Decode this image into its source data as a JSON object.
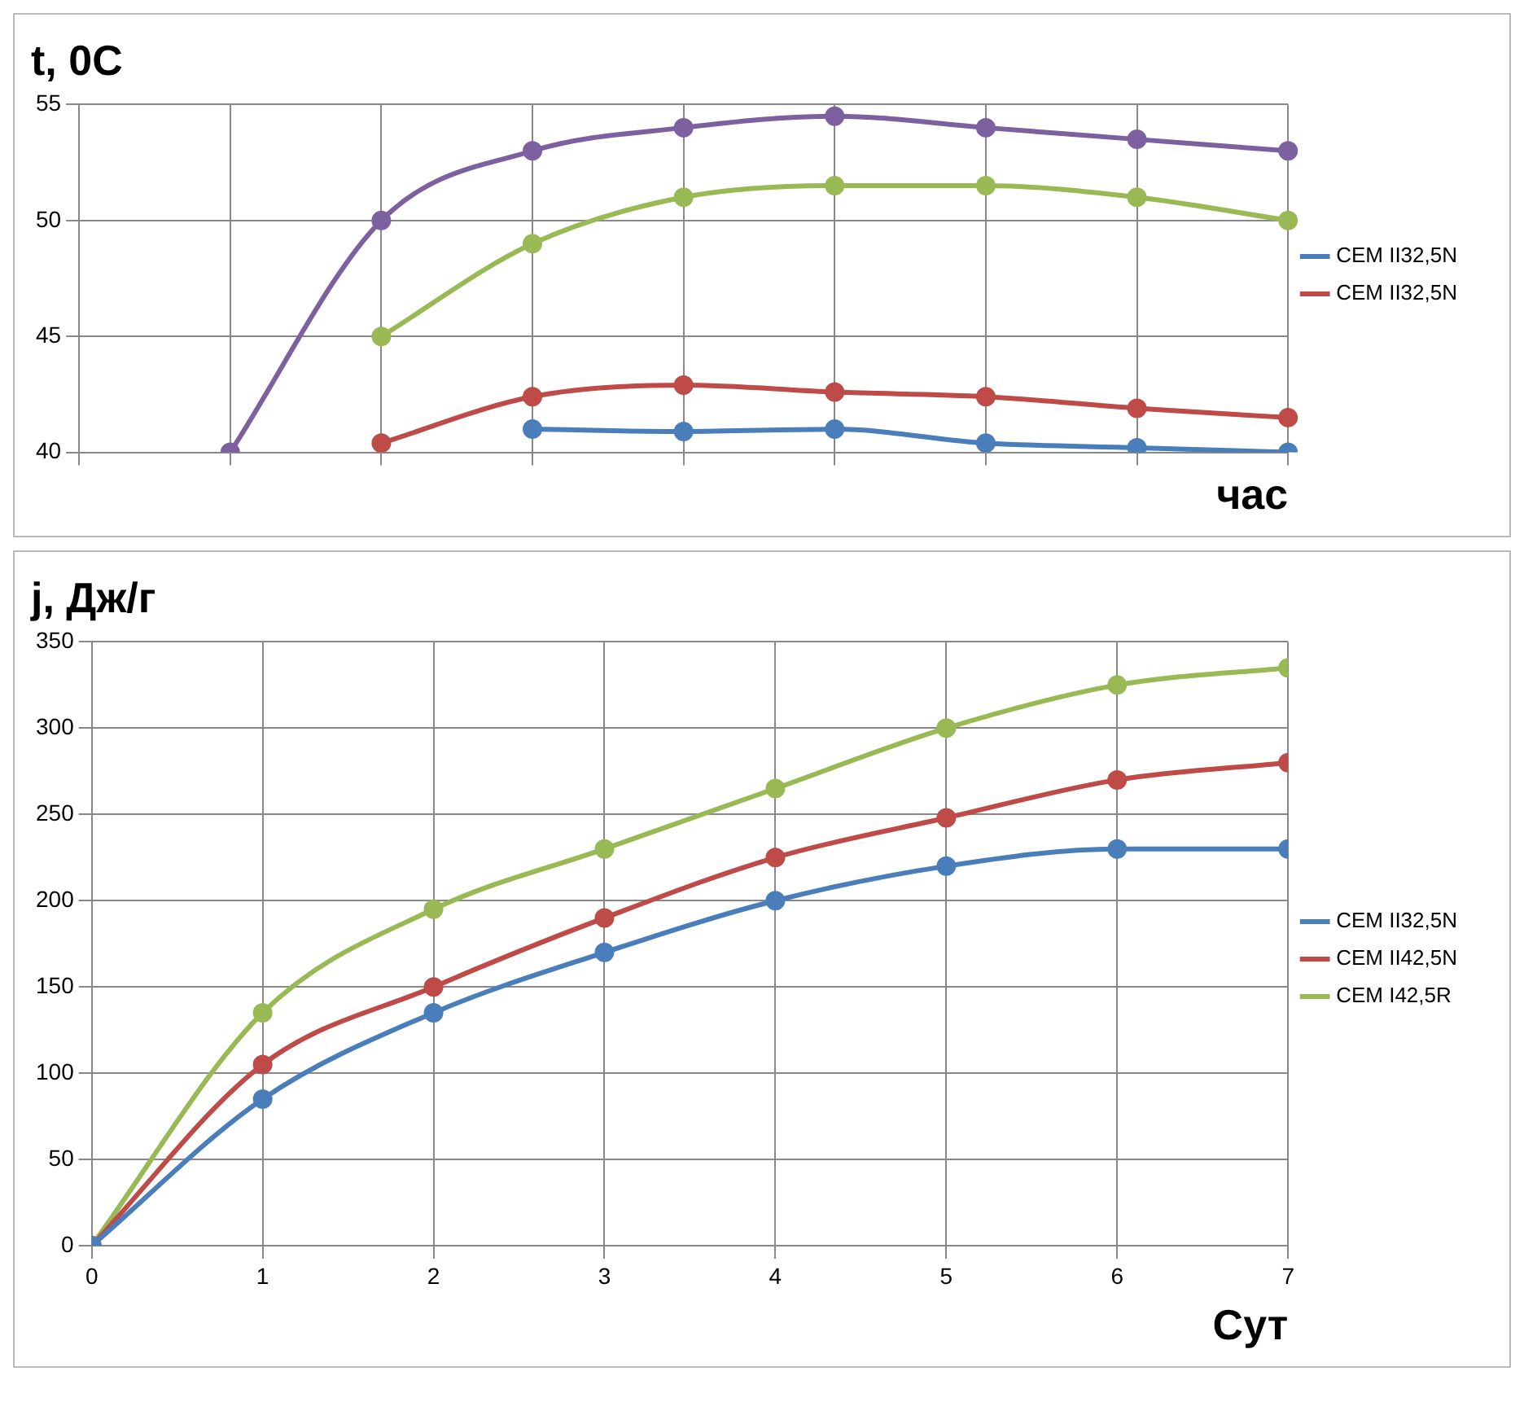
{
  "chart_data": [
    {
      "type": "line",
      "title": "t, 0C",
      "xlabel": "час",
      "categories": [
        null,
        null,
        null,
        null,
        null,
        null,
        null,
        null,
        null
      ],
      "ylim": [
        40,
        55
      ],
      "yticks": [
        40,
        45,
        50,
        55
      ],
      "grid": true,
      "legend": "right",
      "marker": "circle",
      "tick_labels": "y",
      "series": [
        {
          "name": "CEM II32,5N",
          "color": "#4a7ebb",
          "values": [
            null,
            null,
            null,
            41,
            40.9,
            41,
            40.4,
            40.2,
            40
          ]
        },
        {
          "name": "CEM II32,5N",
          "color": "#be4b48",
          "values": [
            null,
            null,
            40.4,
            42.4,
            42.9,
            42.6,
            42.4,
            41.9,
            41.5
          ]
        },
        {
          "color": "#98b954",
          "values": [
            null,
            null,
            45,
            49,
            51,
            51.5,
            51.5,
            51,
            50
          ]
        },
        {
          "color": "#7d60a0",
          "values": [
            null,
            40,
            50,
            53,
            54,
            54.5,
            54,
            53.5,
            53
          ]
        }
      ]
    },
    {
      "type": "line",
      "title": "j, Дж/г",
      "xlabel": "Сут",
      "x": [
        0,
        1,
        2,
        3,
        4,
        5,
        6,
        7
      ],
      "xlim": [
        0,
        7
      ],
      "xticks": [
        0,
        1,
        2,
        3,
        4,
        5,
        6,
        7
      ],
      "ylim": [
        0,
        350
      ],
      "yticks": [
        0,
        50,
        100,
        150,
        200,
        250,
        300,
        350
      ],
      "grid": true,
      "legend": "right",
      "marker": "circle",
      "series": [
        {
          "name": "CEM II32,5N",
          "color": "#4a7ebb",
          "values": [
            0,
            85,
            135,
            170,
            200,
            220,
            230,
            230
          ]
        },
        {
          "name": "CEM II42,5N",
          "color": "#be4b48",
          "values": [
            0,
            105,
            150,
            190,
            225,
            248,
            270,
            280
          ]
        },
        {
          "name": "CEM I42,5R",
          "color": "#98b954",
          "values": [
            0,
            135,
            195,
            230,
            265,
            300,
            325,
            335
          ]
        }
      ]
    }
  ]
}
